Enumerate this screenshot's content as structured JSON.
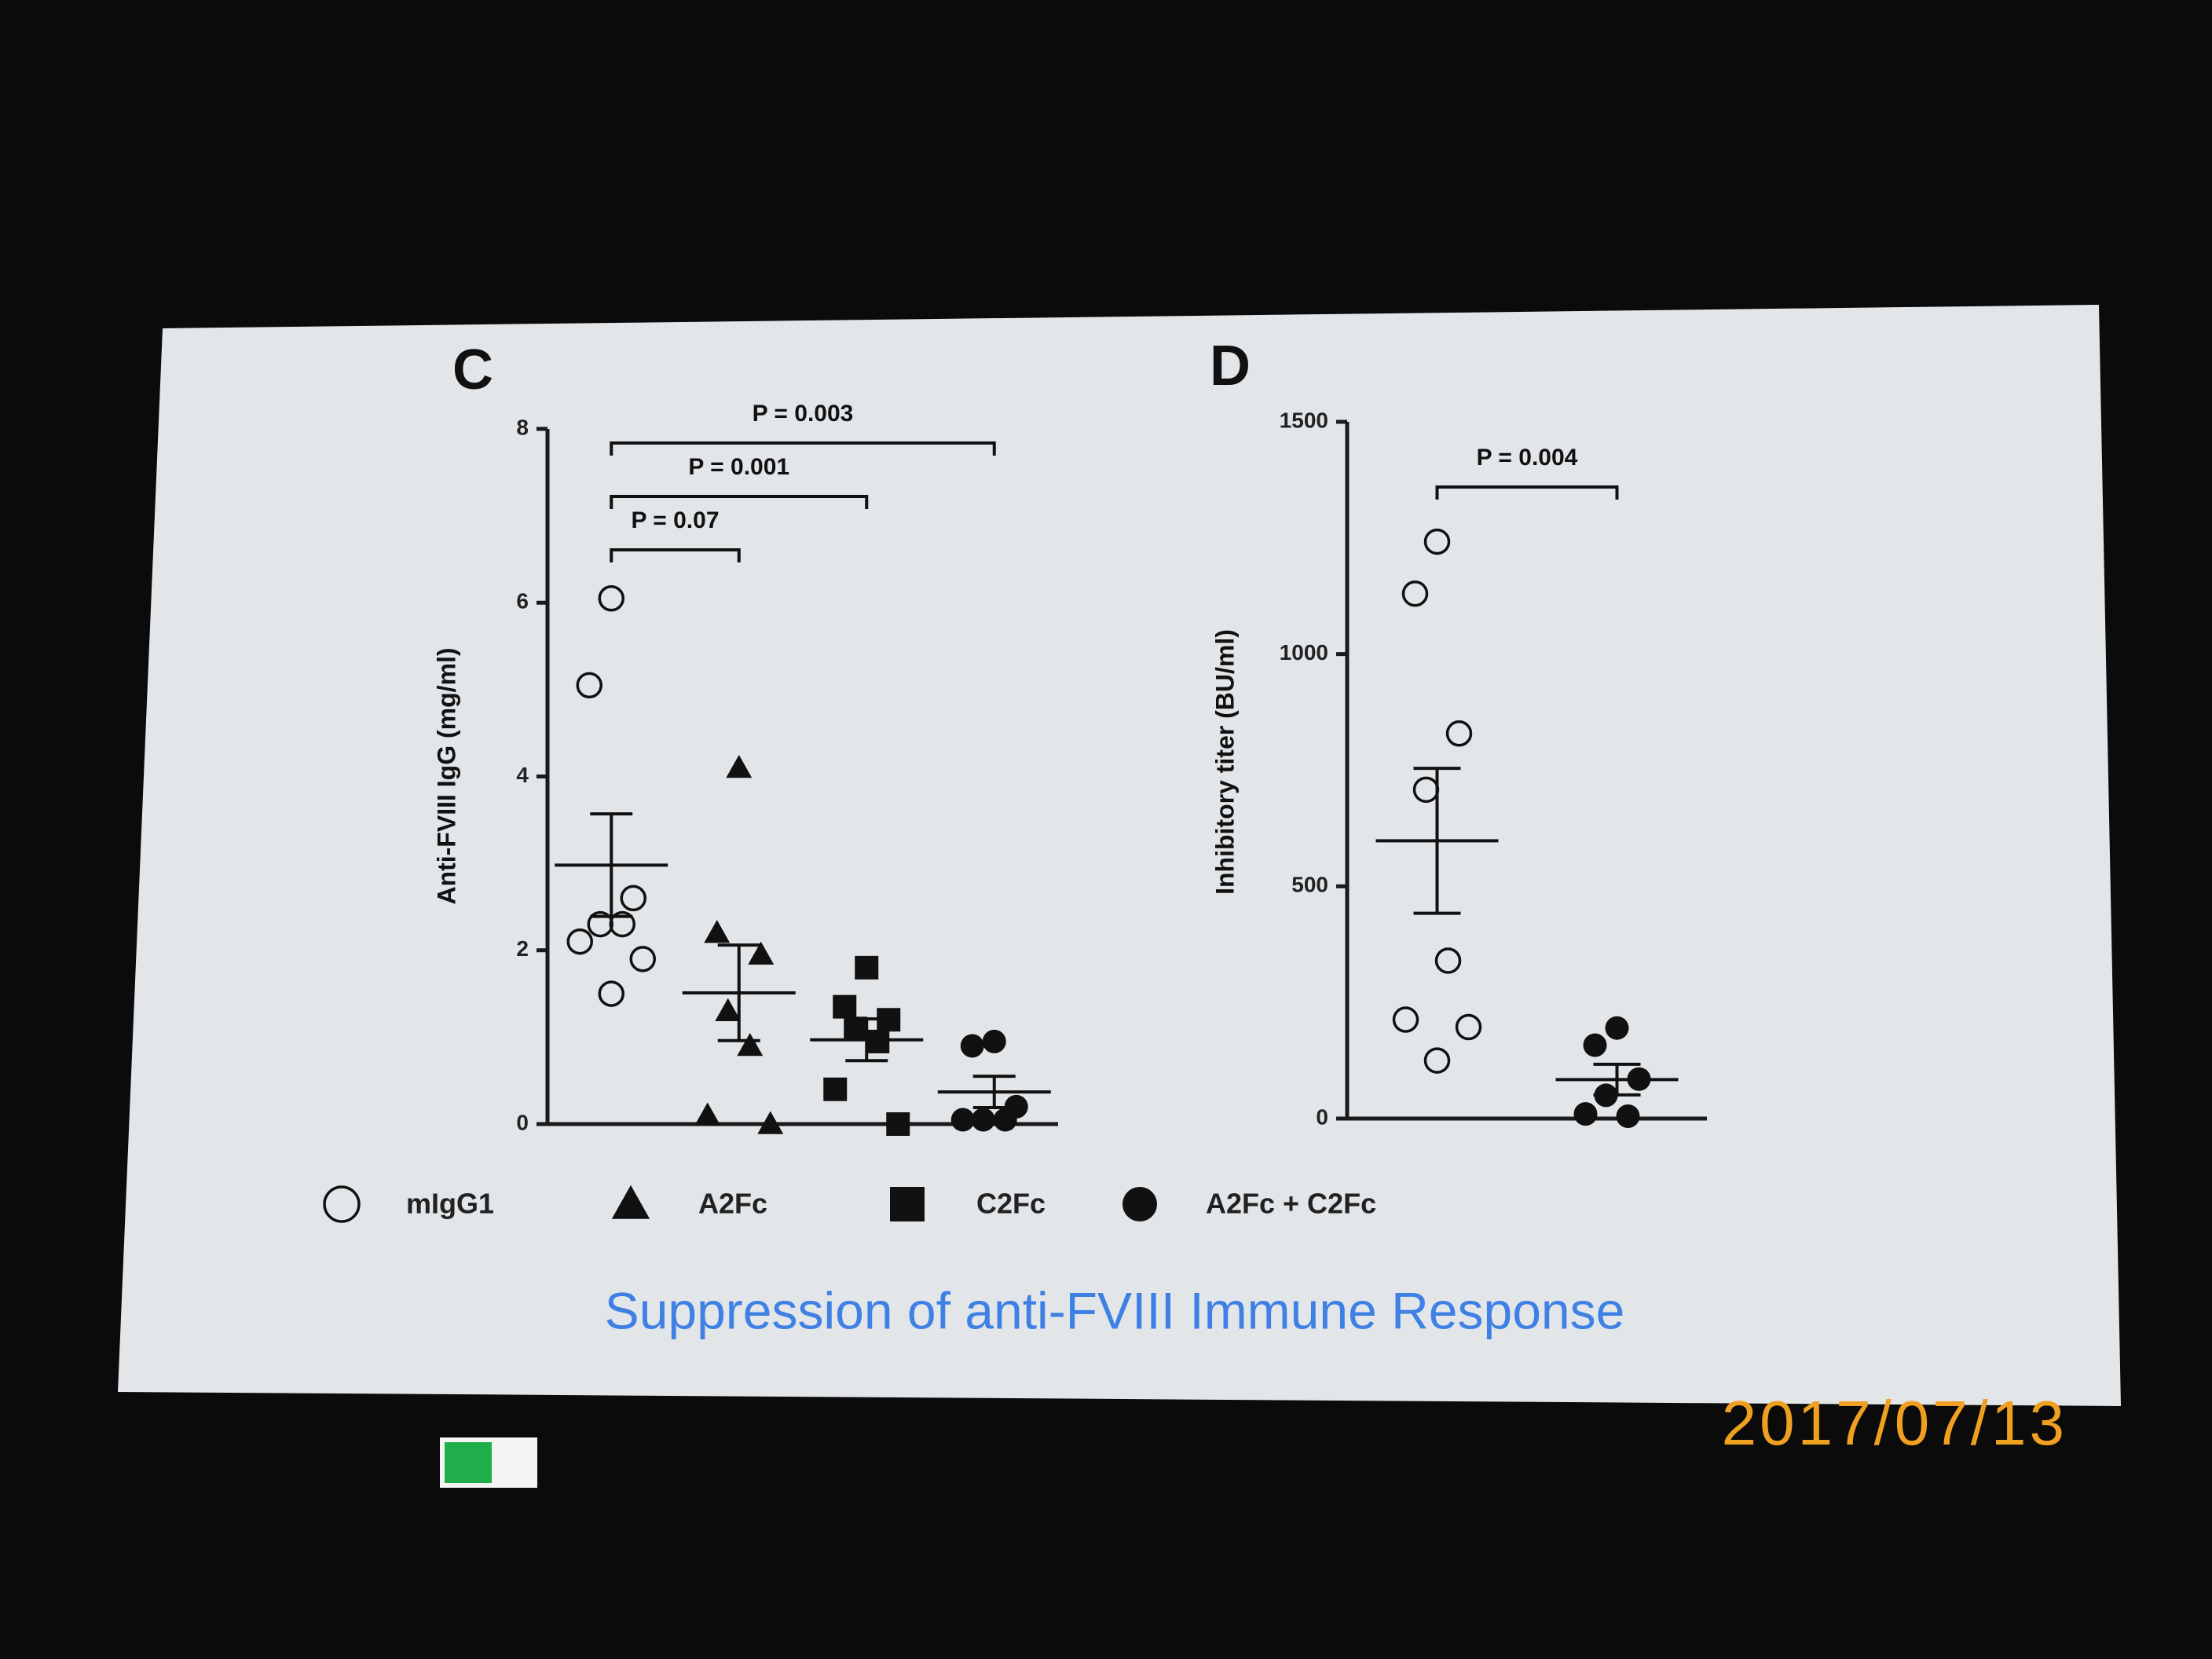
{
  "chart_data": [
    {
      "type": "strip",
      "title": "C",
      "ylabel": "Anti-FVIII IgG (mg/ml)",
      "ylim": [
        0,
        8
      ],
      "yticks": [
        0,
        2,
        4,
        6,
        8
      ],
      "series": [
        {
          "name": "mIgG1",
          "marker": "circle-open",
          "color": "#111111",
          "values": [
            6.05,
            5.05,
            2.6,
            2.3,
            2.3,
            2.1,
            1.9,
            1.5
          ],
          "mean": 2.98,
          "sem": 0.59
        },
        {
          "name": "A2Fc",
          "marker": "triangle",
          "color": "#111111",
          "values": [
            4.1,
            2.2,
            1.95,
            1.3,
            0.9,
            0.1,
            0
          ],
          "mean": 1.51,
          "sem": 0.55
        },
        {
          "name": "C2Fc",
          "marker": "square",
          "color": "#111111",
          "values": [
            1.8,
            1.35,
            1.2,
            1.1,
            0.95,
            0.4,
            0
          ],
          "mean": 0.97,
          "sem": 0.24
        },
        {
          "name": "A2Fc + C2Fc",
          "marker": "circle",
          "color": "#111111",
          "values": [
            0.95,
            0.9,
            0.2,
            0.05,
            0.05,
            0.05
          ],
          "mean": 0.37,
          "sem": 0.18
        }
      ],
      "comparisons": [
        {
          "groups": [
            0,
            1
          ],
          "label": "P = 0.07"
        },
        {
          "groups": [
            0,
            2
          ],
          "label": "P = 0.001"
        },
        {
          "groups": [
            0,
            3
          ],
          "label": "P = 0.003"
        }
      ]
    },
    {
      "type": "strip",
      "title": "D",
      "ylabel": "Inhibitory titer (BU/ml)",
      "ylim": [
        0,
        1500
      ],
      "yticks": [
        0,
        500,
        1000,
        1500
      ],
      "series": [
        {
          "marker": "circle-open",
          "color": "#111111",
          "values": [
            1242,
            1130,
            829,
            708,
            340,
            213,
            197,
            125
          ],
          "mean": 598,
          "sem": 156
        },
        {
          "marker": "circle",
          "color": "#111111",
          "values": [
            195,
            158,
            85,
            50,
            5,
            10
          ],
          "mean": 84,
          "sem": 33
        }
      ],
      "comparisons": [
        {
          "groups": [
            0,
            1
          ],
          "label": "P = 0.004"
        }
      ]
    }
  ],
  "caption": "Suppression of anti-FVIII Immune Response",
  "date_stamp": "2017/07/13"
}
